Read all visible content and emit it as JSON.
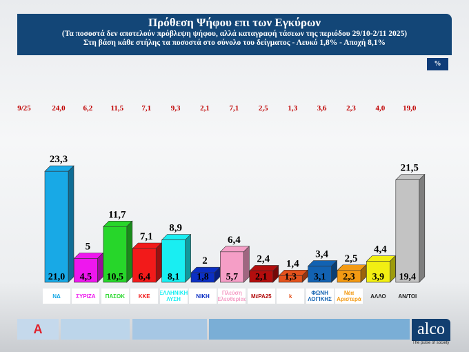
{
  "header": {
    "title": "Πρόθεση Ψήφου επι των Εγκύρων",
    "subtitle1": "(Τα ποσοστά δεν αποτελούν πρόβλεψη ψήφου, αλλά καταγραφή τάσεων της περιόδου  29/10-2/11 2025)",
    "subtitle2": "Στη βάση κάθε στήλης τα ποσοστά στο σύνολο του δείγματος - Λευκό 1,8% - Αποχή 8,1%"
  },
  "unit_badge": "%",
  "chart_data": {
    "type": "bar",
    "categories": [
      "ΝΔ",
      "ΣΥΡΙΖΑ",
      "ΠΑΣΟΚ",
      "ΚΚΕ",
      "ΕΛΛΗΝΙΚΗ ΛΥΣΗ",
      "ΝΙΚΗ",
      "Πλεύση Ελευθερίας",
      "ΜέΡΑ25",
      "k",
      "ΦΩΝΗ ΛΟΓΙΚΗΣ",
      "Νέα Αριστερά",
      "ΑΛΛΟ",
      "ΑΝ/ΤΟΙ"
    ],
    "colors": [
      "#18a9e6",
      "#ee17ee",
      "#27d62a",
      "#f21a1a",
      "#19eef2",
      "#0b2fc4",
      "#f59ec6",
      "#b30d0d",
      "#e4521c",
      "#1262b2",
      "#f39a13",
      "#f2ef12",
      "#c3c3c3"
    ],
    "values_labels": [
      "23,3",
      "5",
      "11,7",
      "7,1",
      "8,9",
      "2",
      "6,4",
      "2,4",
      "1,4",
      "3,4",
      "2,5",
      "4,4",
      "21,5"
    ],
    "values": [
      23.3,
      5,
      11.7,
      7.1,
      8.9,
      2,
      6.4,
      2.4,
      1.4,
      3.4,
      2.5,
      4.4,
      21.5
    ],
    "base_labels": [
      "21,0",
      "4,5",
      "10,5",
      "6,4",
      "8,1",
      "1,8",
      "5,7",
      "2,1",
      "1,3",
      "3,1",
      "2,3",
      "3,9",
      "19,4"
    ],
    "previous": {
      "name": "9/25",
      "labels": [
        "24,0",
        "6,2",
        "11,5",
        "7,1",
        "9,3",
        "2,1",
        "7,1",
        "2,5",
        "1,3",
        "3,6",
        "2,3",
        "4,0",
        "19,0"
      ]
    },
    "ylim": [
      0,
      25
    ]
  },
  "footer": {
    "brand": "alco",
    "tagline": "The pulse of society",
    "channel_logo": "A"
  }
}
